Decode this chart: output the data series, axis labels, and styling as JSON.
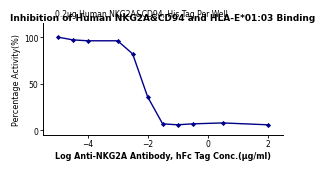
{
  "title": "Inhibition of Human NKG2A&CD94 and HLA-E*01:03 Binding",
  "subtitle": "0.2μg Human NKG2A&CD94, His Tag Per Well",
  "xlabel": "Log Anti-NKG2A Antibody, hFc Tag Conc.(μg/ml)",
  "ylabel": "Percentage Activity(%)",
  "data_x": [
    -5.0,
    -4.5,
    -4.0,
    -3.0,
    -2.5,
    -2.0,
    -1.5,
    -1.0,
    -0.5,
    0.5,
    2.0
  ],
  "data_y": [
    100,
    97,
    96,
    96,
    82,
    36,
    7,
    6,
    7,
    8,
    6
  ],
  "xlim": [
    -5.5,
    2.5
  ],
  "ylim": [
    -5,
    115
  ],
  "xticks": [
    -4,
    -2,
    0,
    2
  ],
  "yticks": [
    0,
    50,
    100
  ],
  "curve_color": "#00008B",
  "dot_color": "#00008B",
  "title_fontsize": 6.5,
  "subtitle_fontsize": 5.5,
  "label_fontsize": 5.8,
  "tick_fontsize": 5.5
}
